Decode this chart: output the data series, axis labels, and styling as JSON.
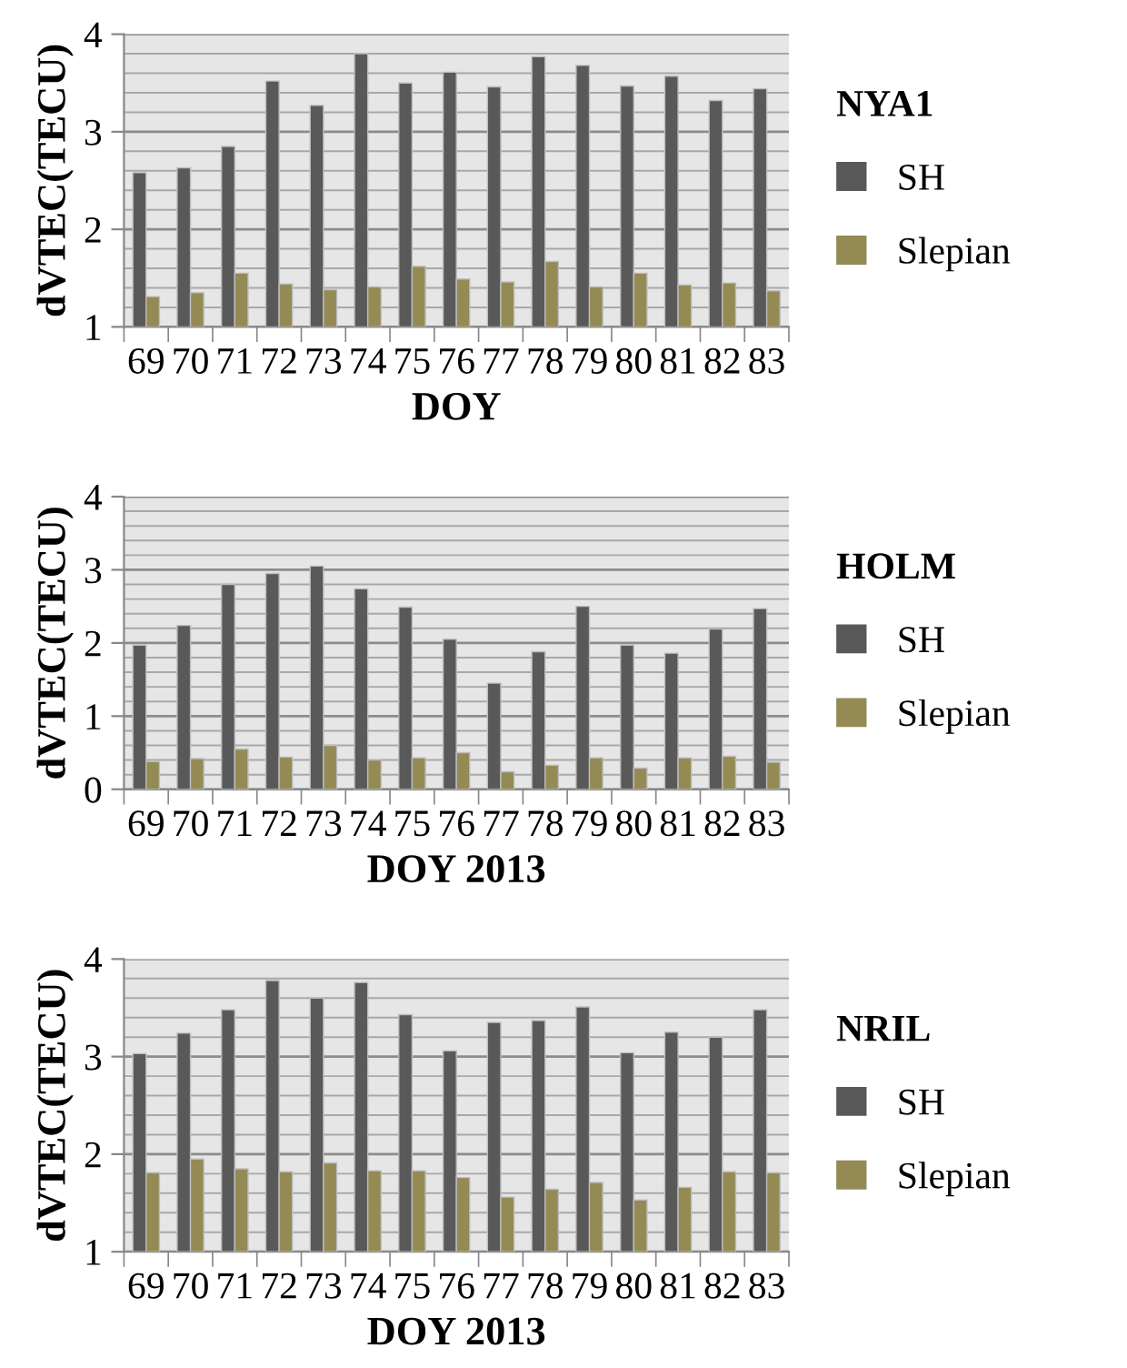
{
  "chart_data": [
    {
      "type": "bar",
      "legend_title": "NYA1",
      "xlabel": "DOY",
      "ylabel": "dVTEC(TECU)",
      "categories": [
        "69",
        "70",
        "71",
        "72",
        "73",
        "74",
        "75",
        "76",
        "77",
        "78",
        "79",
        "80",
        "81",
        "82",
        "83"
      ],
      "ylim": [
        1,
        4
      ],
      "yticks": [
        1,
        2,
        3,
        4
      ],
      "grid": "y",
      "legend": "right",
      "series": [
        {
          "name": "SH",
          "color": "#595959",
          "values": [
            2.58,
            2.63,
            2.85,
            3.52,
            3.27,
            3.8,
            3.5,
            3.61,
            3.46,
            3.77,
            3.68,
            3.47,
            3.57,
            3.32,
            3.44
          ]
        },
        {
          "name": "Slepian",
          "color": "#948a54",
          "values": [
            1.31,
            1.35,
            1.55,
            1.44,
            1.38,
            1.41,
            1.62,
            1.49,
            1.46,
            1.67,
            1.41,
            1.55,
            1.43,
            1.45,
            1.37
          ]
        }
      ]
    },
    {
      "type": "bar",
      "legend_title": "HOLM",
      "xlabel": "DOY 2013",
      "ylabel": "dVTEC(TECU)",
      "categories": [
        "69",
        "70",
        "71",
        "72",
        "73",
        "74",
        "75",
        "76",
        "77",
        "78",
        "79",
        "80",
        "81",
        "82",
        "83"
      ],
      "ylim": [
        0,
        4
      ],
      "yticks": [
        0,
        1,
        2,
        3,
        4
      ],
      "grid": "y",
      "legend": "right",
      "series": [
        {
          "name": "SH",
          "color": "#595959",
          "values": [
            1.97,
            2.24,
            2.8,
            2.95,
            3.05,
            2.74,
            2.49,
            2.05,
            1.45,
            1.88,
            2.5,
            1.97,
            1.86,
            2.19,
            2.47
          ]
        },
        {
          "name": "Slepian",
          "color": "#948a54",
          "values": [
            0.38,
            0.42,
            0.55,
            0.44,
            0.6,
            0.4,
            0.43,
            0.5,
            0.24,
            0.33,
            0.43,
            0.29,
            0.43,
            0.45,
            0.37
          ]
        }
      ]
    },
    {
      "type": "bar",
      "legend_title": "NRIL",
      "xlabel": "DOY 2013",
      "ylabel": "dVTEC(TECU)",
      "categories": [
        "69",
        "70",
        "71",
        "72",
        "73",
        "74",
        "75",
        "76",
        "77",
        "78",
        "79",
        "80",
        "81",
        "82",
        "83"
      ],
      "ylim": [
        1,
        4
      ],
      "yticks": [
        1,
        2,
        3,
        4
      ],
      "grid": "y",
      "legend": "right",
      "series": [
        {
          "name": "SH",
          "color": "#595959",
          "values": [
            3.03,
            3.24,
            3.48,
            3.78,
            3.6,
            3.76,
            3.43,
            3.06,
            3.35,
            3.37,
            3.51,
            3.04,
            3.25,
            3.2,
            3.48
          ]
        },
        {
          "name": "Slepian",
          "color": "#948a54",
          "values": [
            1.81,
            1.95,
            1.85,
            1.82,
            1.91,
            1.83,
            1.83,
            1.76,
            1.56,
            1.64,
            1.71,
            1.53,
            1.66,
            1.82,
            1.81
          ]
        }
      ]
    }
  ]
}
